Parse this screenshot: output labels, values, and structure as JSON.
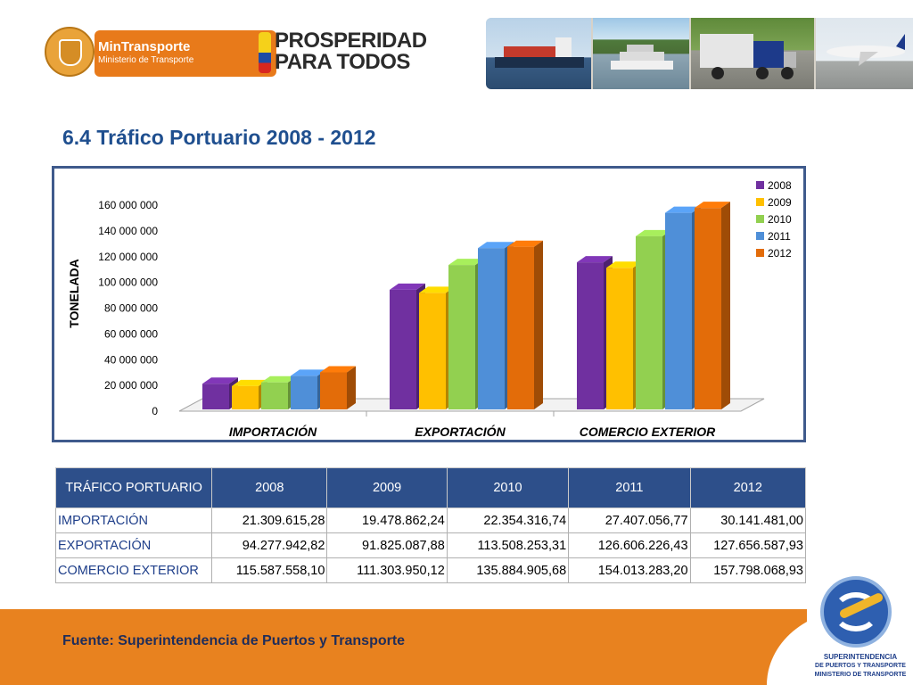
{
  "header": {
    "min_transporte": {
      "name": "MinTransporte",
      "subtitle": "Ministerio de Transporte"
    },
    "prosperidad": {
      "line1": "PROSPERIDAD",
      "line2": "PARA TODOS"
    }
  },
  "page_title": "6.4 Tráfico Portuario 2008 - 2012",
  "colors": {
    "2008": "#7030a0",
    "2009": "#ffc000",
    "2010": "#92d050",
    "2011": "#4f8fd8",
    "2012": "#e36c09",
    "accent": "#2d4f8a",
    "footer": "#e8821f"
  },
  "chart_data": {
    "type": "bar",
    "title": "",
    "xlabel": "",
    "ylabel": "TONELADA",
    "categories": [
      "IMPORTACIÓN",
      "EXPORTACIÓN",
      "COMERCIO EXTERIOR"
    ],
    "series": [
      {
        "name": "2008",
        "values": [
          21309615.28,
          94277942.82,
          115587558.1
        ]
      },
      {
        "name": "2009",
        "values": [
          19478862.24,
          91825087.88,
          111303950.12
        ]
      },
      {
        "name": "2010",
        "values": [
          22354316.74,
          113508253.31,
          135884905.68
        ]
      },
      {
        "name": "2011",
        "values": [
          27407056.77,
          126606226.43,
          154013283.2
        ]
      },
      {
        "name": "2012",
        "values": [
          30141481.0,
          127656587.93,
          157798068.93
        ]
      }
    ],
    "ylim": [
      0,
      160000000
    ],
    "yticks": [
      0,
      20000000,
      40000000,
      60000000,
      80000000,
      100000000,
      120000000,
      140000000,
      160000000
    ],
    "ytick_labels": [
      "0",
      "20 000 000",
      "40 000 000",
      "60 000 000",
      "80 000 000",
      "100 000 000",
      "120 000 000",
      "140 000 000",
      "160 000 000"
    ],
    "legend_position": "top-right",
    "grid": false
  },
  "table": {
    "header_label": "TRÁFICO PORTUARIO",
    "years": [
      "2008",
      "2009",
      "2010",
      "2011",
      "2012"
    ],
    "rows": [
      {
        "label": "IMPORTACIÓN",
        "values": [
          "21.309.615,28",
          "19.478.862,24",
          "22.354.316,74",
          "27.407.056,77",
          "30.141.481,00"
        ]
      },
      {
        "label": "EXPORTACIÓN",
        "values": [
          "94.277.942,82",
          "91.825.087,88",
          "113.508.253,31",
          "126.606.226,43",
          "127.656.587,93"
        ]
      },
      {
        "label": "COMERCIO EXTERIOR",
        "values": [
          "115.587.558,10",
          "111.303.950,12",
          "135.884.905,68",
          "154.013.283,20",
          "157.798.068,93"
        ]
      }
    ]
  },
  "footer": {
    "source": "Fuente: Superintendencia de Puertos y Transporte",
    "logo_line1": "SUPERINTENDENCIA",
    "logo_line2": "DE PUERTOS Y TRANSPORTE",
    "logo_line3": "MINISTERIO DE TRANSPORTE"
  }
}
